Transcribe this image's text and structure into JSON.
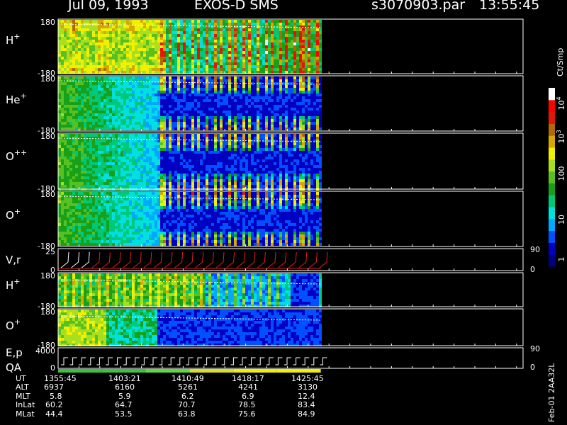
{
  "header": {
    "date": "Jul 09, 1993",
    "instrument": "EXOS-D SMS",
    "file": "s3070903.par",
    "time": "13:55:45"
  },
  "panels": [
    {
      "label": "H",
      "sup": "+",
      "top_tick": "180",
      "bottom_tick": "-180"
    },
    {
      "label": "He",
      "sup": "+",
      "top_tick": "180",
      "bottom_tick": "-180"
    },
    {
      "label": "O",
      "sup": "++",
      "top_tick": "180",
      "bottom_tick": "-180"
    },
    {
      "label": "O",
      "sup": "+",
      "top_tick": "180",
      "bottom_tick": "-180"
    },
    {
      "label": "V,r",
      "sup": "",
      "top_tick": "25",
      "bottom_tick": "0",
      "right_top": "90",
      "right_bottom": "0"
    },
    {
      "label": "H",
      "sup": "+",
      "top_tick": "180",
      "bottom_tick": "-180"
    },
    {
      "label": "O",
      "sup": "+",
      "top_tick": "180",
      "bottom_tick": "-180"
    },
    {
      "label": "E,p",
      "sup": "",
      "top_tick": "4000",
      "bottom_tick": "0",
      "right_top": "90",
      "right_bottom": "0"
    }
  ],
  "qa_label": "QA",
  "colorbar": {
    "unit": "Ct/Smp",
    "ticks": [
      {
        "base": "10",
        "exp": "4"
      },
      {
        "base": "10",
        "exp": "3"
      },
      {
        "base": "100",
        "exp": ""
      },
      {
        "base": "10",
        "exp": ""
      },
      {
        "base": "1",
        "exp": ""
      }
    ]
  },
  "orbit_table": {
    "rows": [
      {
        "name": "UT",
        "values": [
          "1355:45",
          "1403:21",
          "1410:49",
          "1418:17",
          "1425:45"
        ]
      },
      {
        "name": "ALT",
        "values": [
          "6937",
          "6160",
          "5261",
          "4241",
          "3130"
        ]
      },
      {
        "name": "MLT",
        "values": [
          "5.8",
          "5.9",
          "6.2",
          "6.9",
          "12.4"
        ]
      },
      {
        "name": "InLat",
        "values": [
          "60.2",
          "64.7",
          "70.7",
          "78.5",
          "83.4"
        ]
      },
      {
        "name": "MLat",
        "values": [
          "44.4",
          "53.5",
          "63.8",
          "75.6",
          "84.9"
        ]
      }
    ]
  },
  "footer_note": "Feb-01 2AA32L",
  "chart_data": {
    "type": "heatmap",
    "title": "Jul 09, 1993   EXOS-D SMS",
    "xlabel": "UT",
    "x_ticks": [
      "1355:45",
      "1403:21",
      "1410:49",
      "1418:17",
      "1425:45"
    ],
    "ylim": [
      -180,
      180
    ],
    "color_scale": "log",
    "color_range": [
      1,
      10000
    ],
    "colors": [
      "#000080",
      "#0000c0",
      "#0050ff",
      "#00a8ff",
      "#00e0e0",
      "#00c878",
      "#18a018",
      "#58c020",
      "#a8e020",
      "#f0f000",
      "#d8a800",
      "#b06808",
      "#e01808",
      "#ff0000",
      "#ffffff"
    ],
    "data_end_fraction": 0.565,
    "series": [
      {
        "name": "H+",
        "profile": "high"
      },
      {
        "name": "He+",
        "profile": "low"
      },
      {
        "name": "O++",
        "profile": "low"
      },
      {
        "name": "O+",
        "profile": "low"
      }
    ]
  }
}
